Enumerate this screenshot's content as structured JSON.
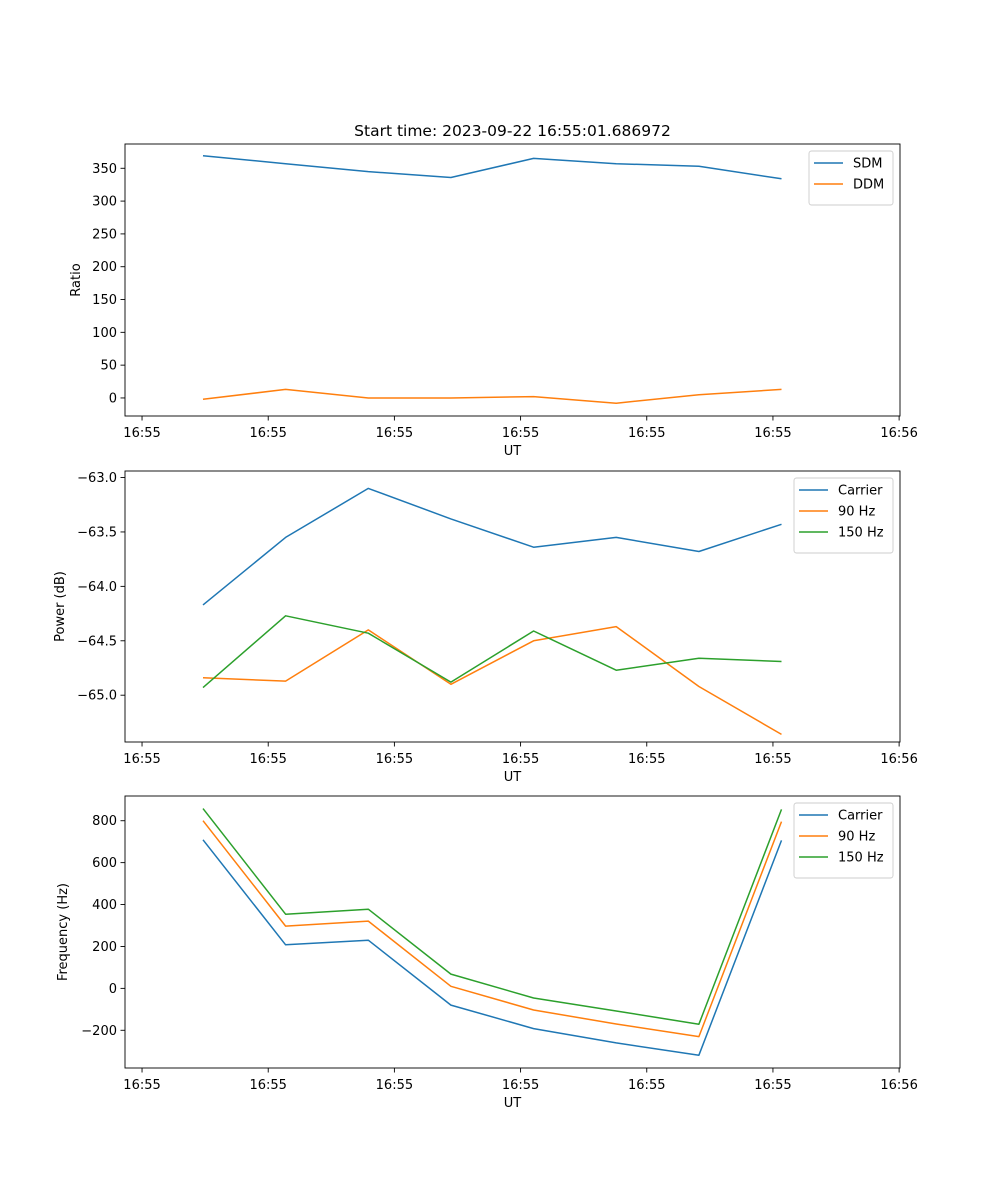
{
  "chart_data": [
    {
      "type": "line",
      "title": "Start time: 2023-09-22 16:55:01.686972",
      "xlabel": "UT",
      "ylabel": "Ratio",
      "x_ticks": [
        "16:55",
        "16:55",
        "16:55",
        "16:55",
        "16:55",
        "16:55",
        "16:56"
      ],
      "x_tick_positions": [
        0,
        1,
        2,
        3,
        4,
        5,
        6
      ],
      "xlim": [
        -0.135,
        6.007
      ],
      "x": [
        0.483,
        1.138,
        1.793,
        2.448,
        3.103,
        3.758,
        4.413,
        5.068
      ],
      "ylim": [
        -27.5,
        387
      ],
      "y_ticks": [
        0,
        50,
        100,
        150,
        200,
        250,
        300,
        350
      ],
      "legend": "top-right",
      "series": [
        {
          "name": "SDM",
          "color": "#1f77b4",
          "values": [
            369,
            357,
            345,
            336,
            365,
            357,
            353,
            334
          ]
        },
        {
          "name": "DDM",
          "color": "#ff7f0e",
          "values": [
            -2,
            13,
            0,
            0,
            2,
            -8,
            5,
            13
          ]
        }
      ]
    },
    {
      "type": "line",
      "title": "",
      "xlabel": "UT",
      "ylabel": "Power (dB)",
      "x_ticks": [
        "16:55",
        "16:55",
        "16:55",
        "16:55",
        "16:55",
        "16:55",
        "16:56"
      ],
      "x_tick_positions": [
        0,
        1,
        2,
        3,
        4,
        5,
        6
      ],
      "xlim": [
        -0.135,
        6.007
      ],
      "x": [
        0.483,
        1.138,
        1.793,
        2.448,
        3.103,
        3.758,
        4.413,
        5.068
      ],
      "ylim": [
        -65.43,
        -62.94
      ],
      "y_ticks": [
        -65.0,
        -64.5,
        -64.0,
        -63.5,
        -63.0
      ],
      "y_tick_labels": [
        "−65.0",
        "−64.5",
        "−64.0",
        "−63.5",
        "−63.0"
      ],
      "legend": "top-right",
      "series": [
        {
          "name": "Carrier",
          "color": "#1f77b4",
          "values": [
            -64.17,
            -63.55,
            -63.1,
            -63.38,
            -63.64,
            -63.55,
            -63.68,
            -63.43
          ]
        },
        {
          "name": "90 Hz",
          "color": "#ff7f0e",
          "values": [
            -64.84,
            -64.87,
            -64.4,
            -64.9,
            -64.5,
            -64.37,
            -64.92,
            -65.36
          ]
        },
        {
          "name": "150 Hz",
          "color": "#2ca02c",
          "values": [
            -64.93,
            -64.27,
            -64.43,
            -64.88,
            -64.41,
            -64.77,
            -64.66,
            -64.69
          ]
        }
      ]
    },
    {
      "type": "line",
      "title": "",
      "xlabel": "UT",
      "ylabel": "Frequency (Hz)",
      "x_ticks": [
        "16:55",
        "16:55",
        "16:55",
        "16:55",
        "16:55",
        "16:55",
        "16:56"
      ],
      "x_tick_positions": [
        0,
        1,
        2,
        3,
        4,
        5,
        6
      ],
      "xlim": [
        -0.135,
        6.007
      ],
      "x": [
        0.483,
        1.138,
        1.793,
        2.448,
        3.103,
        3.758,
        4.413,
        5.068
      ],
      "ylim": [
        -380,
        918
      ],
      "y_ticks": [
        -200,
        0,
        200,
        400,
        600,
        800
      ],
      "y_tick_labels": [
        "−200",
        "0",
        "200",
        "400",
        "600",
        "800"
      ],
      "legend": "top-right",
      "series": [
        {
          "name": "Carrier",
          "color": "#1f77b4",
          "values": [
            709,
            208,
            230,
            -80,
            -192,
            -260,
            -319,
            706
          ]
        },
        {
          "name": "90 Hz",
          "color": "#ff7f0e",
          "values": [
            800,
            297,
            321,
            10,
            -103,
            -170,
            -230,
            796
          ]
        },
        {
          "name": "150 Hz",
          "color": "#2ca02c",
          "values": [
            858,
            354,
            378,
            68,
            -46,
            -108,
            -171,
            854
          ]
        }
      ]
    }
  ]
}
